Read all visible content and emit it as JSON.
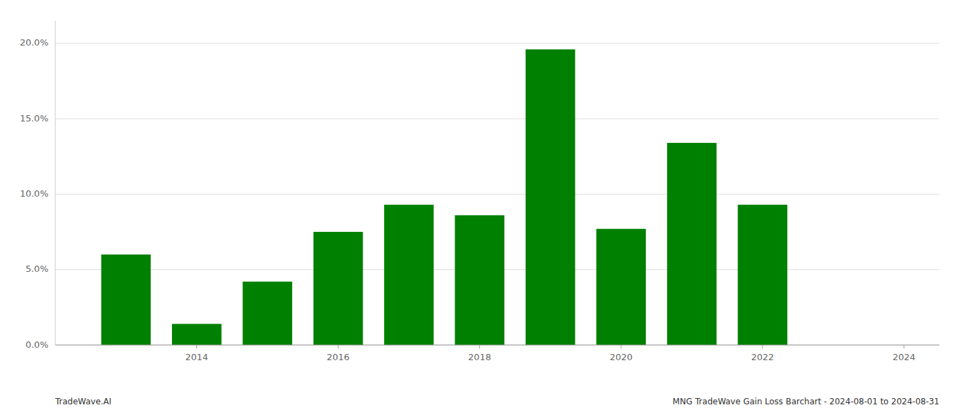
{
  "chart_data": {
    "type": "bar",
    "x": [
      2013,
      2014,
      2015,
      2016,
      2017,
      2018,
      2019,
      2020,
      2021,
      2022
    ],
    "values": [
      0.06,
      0.014,
      0.042,
      0.075,
      0.093,
      0.086,
      0.196,
      0.077,
      0.134,
      0.093
    ],
    "color": "#008000",
    "xlim": [
      2012.0,
      2024.5
    ],
    "xticks": [
      2014,
      2016,
      2018,
      2020,
      2022,
      2024
    ],
    "ylim": [
      0.0,
      0.215
    ],
    "yticks": [
      {
        "value": 0.0,
        "label": "0.0%"
      },
      {
        "value": 0.05,
        "label": "5.0%"
      },
      {
        "value": 0.1,
        "label": "10.0%"
      },
      {
        "value": 0.15,
        "label": "15.0%"
      },
      {
        "value": 0.2,
        "label": "20.0%"
      }
    ],
    "grid": true,
    "annotations": [
      "TradeWave.AI",
      "MNG TradeWave Gain Loss Barchart - 2024-08-01 to 2024-08-31"
    ]
  }
}
